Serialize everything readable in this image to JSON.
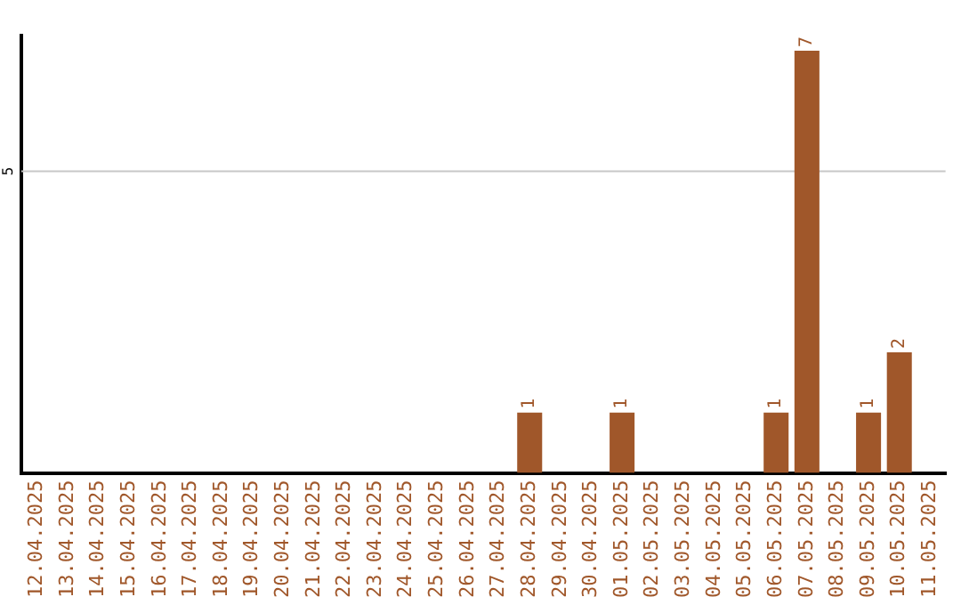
{
  "chart_data": {
    "type": "bar",
    "ylim": [
      0,
      7.25
    ],
    "categories": [
      "12.04.2025",
      "13.04.2025",
      "14.04.2025",
      "15.04.2025",
      "16.04.2025",
      "17.04.2025",
      "18.04.2025",
      "19.04.2025",
      "20.04.2025",
      "21.04.2025",
      "22.04.2025",
      "23.04.2025",
      "24.04.2025",
      "25.04.2025",
      "26.04.2025",
      "27.04.2025",
      "28.04.2025",
      "29.04.2025",
      "30.04.2025",
      "01.05.2025",
      "02.05.2025",
      "03.05.2025",
      "04.05.2025",
      "05.05.2025",
      "06.05.2025",
      "07.05.2025",
      "08.05.2025",
      "09.05.2025",
      "10.05.2025",
      "11.05.2025"
    ],
    "values": [
      null,
      null,
      null,
      null,
      null,
      null,
      null,
      null,
      null,
      null,
      null,
      null,
      null,
      null,
      null,
      null,
      1,
      null,
      null,
      1,
      null,
      null,
      null,
      null,
      1,
      7,
      null,
      1,
      2,
      null
    ],
    "data_labels": true,
    "color": "#a0572a",
    "ref_lines": [
      {
        "axis": "y",
        "value": 5,
        "label": "5",
        "color": "#c8c8c8"
      }
    ],
    "legend": false
  }
}
